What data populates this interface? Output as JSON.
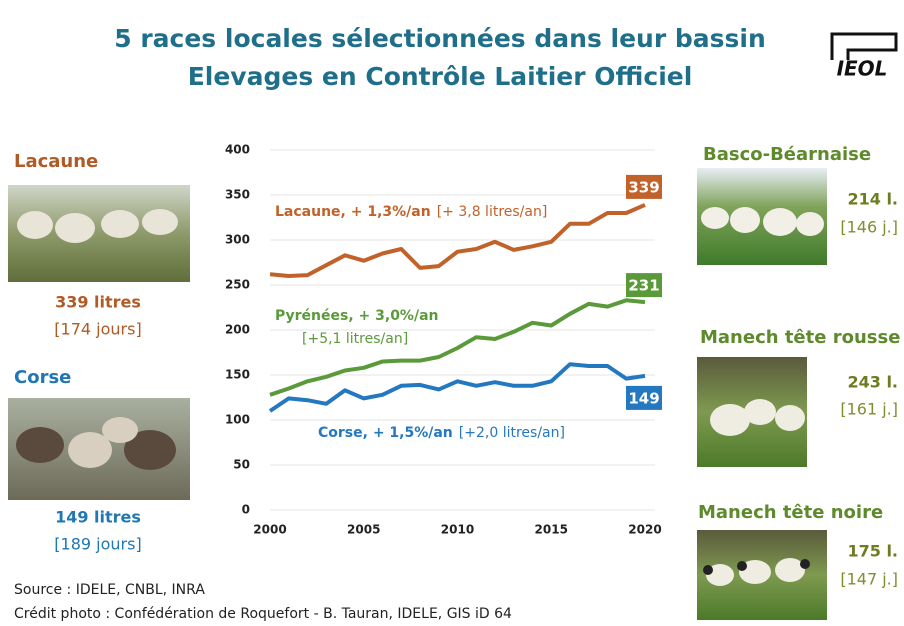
{
  "title": [
    "5 races locales sélectionnées dans leur bassin",
    "Elevages en Contrôle Laitier Officiel"
  ],
  "logo": "IEOL",
  "chart_data": {
    "type": "line",
    "x": [
      2000,
      2001,
      2002,
      2003,
      2004,
      2005,
      2006,
      2007,
      2008,
      2009,
      2010,
      2011,
      2012,
      2013,
      2014,
      2015,
      2016,
      2017,
      2018,
      2019,
      2020
    ],
    "series": [
      {
        "name": "Lacaune, + 1,3%/an",
        "note": "[+ 3,8 litres/an]",
        "color": "#c0622a",
        "values": [
          262,
          260,
          261,
          272,
          283,
          277,
          285,
          290,
          269,
          271,
          287,
          290,
          298,
          289,
          293,
          298,
          318,
          318,
          330,
          330,
          339
        ]
      },
      {
        "name": "Pyrénées, + 3,0%/an",
        "note": "[+5,1 litres/an]",
        "color": "#5a9a3a",
        "values": [
          128,
          135,
          143,
          148,
          155,
          158,
          165,
          166,
          166,
          170,
          180,
          192,
          190,
          198,
          208,
          205,
          218,
          229,
          226,
          233,
          231
        ]
      },
      {
        "name": "Corse, + 1,5%/an",
        "note": "[+2,0 litres/an]",
        "color": "#2478c0",
        "values": [
          110,
          124,
          122,
          118,
          133,
          124,
          128,
          138,
          139,
          134,
          143,
          138,
          142,
          138,
          138,
          143,
          162,
          160,
          160,
          146,
          149
        ]
      }
    ],
    "xlim": [
      2000,
      2020
    ],
    "xticks": [
      2000,
      2005,
      2010,
      2015,
      2020
    ],
    "ylim": [
      0,
      400
    ],
    "yticks": [
      0,
      50,
      100,
      150,
      200,
      250,
      300,
      350,
      400
    ],
    "grid": true
  },
  "breeds": [
    {
      "name": "Lacaune",
      "yield": "339 litres",
      "days": "[174 jours]"
    },
    {
      "name": "Corse",
      "yield": "149 litres",
      "days": "[189 jours]"
    },
    {
      "name": "Basco-Béarnaise",
      "yield": "214 l.",
      "days": "[146 j.]"
    },
    {
      "name": "Manech tête rousse",
      "yield": "243 l.",
      "days": "[161 j.]"
    },
    {
      "name": "Manech tête noire",
      "yield": "175 l.",
      "days": "[147 j.]"
    }
  ],
  "source": "Source : IDELE, CNBL, INRA",
  "credit": "Crédit photo : Confédération de Roquefort - B. Tauran, IDELE, GIS iD 64"
}
